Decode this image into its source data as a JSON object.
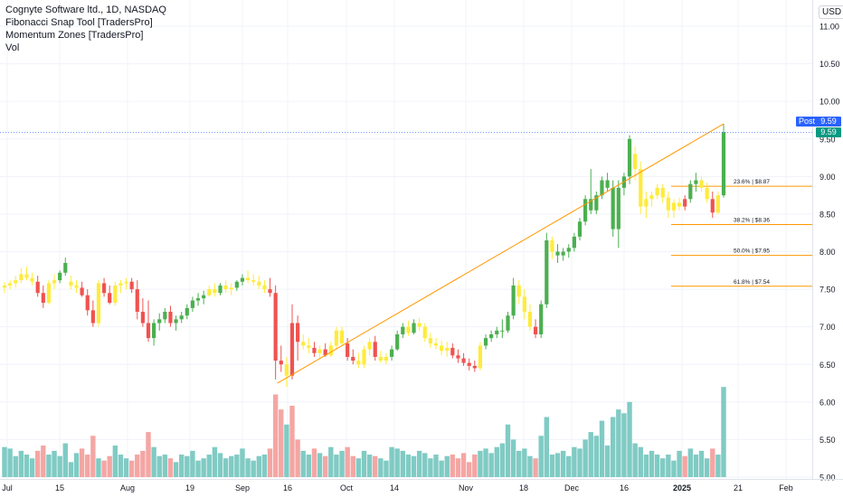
{
  "legend": {
    "title": "Cognyte Software ltd., 1D, NASDAQ",
    "indicators": [
      "Fibonacci Snap Tool [TradersPro]",
      "Momentum Zones [TradersPro]",
      "Vol"
    ]
  },
  "currency": "USD",
  "price_axis_labels": [
    "11.00",
    "10.50",
    "10.00",
    "9.50",
    "9.00",
    "8.50",
    "8.00",
    "7.50",
    "7.00",
    "6.50",
    "6.00",
    "5.50",
    "5.00"
  ],
  "time_axis_labels": [
    "Jul",
    "15",
    "Aug",
    "19",
    "Sep",
    "16",
    "Oct",
    "14",
    "Nov",
    "18",
    "Dec",
    "16",
    "2025",
    "21",
    "Feb"
  ],
  "post_label": "Post",
  "post_price": "9.59",
  "last_price": "9.59",
  "fib_labels": [
    "23.6% | $8.87",
    "38.2% | $8.36",
    "50.0% | $7.95",
    "61.8% | $7.54"
  ],
  "colors": {
    "up": "#4caf50",
    "down": "#ef5350",
    "neutral": "#ffeb3b",
    "vol_up": "#80cbc4",
    "vol_down": "#f4a6a4",
    "fib": "#ff9800",
    "trend": "#ff9800",
    "post": "#2962ff",
    "last": "#089981"
  },
  "chart_data": {
    "type": "candlestick",
    "symbol": "Cognyte Software ltd.",
    "interval": "1D",
    "exchange": "NASDAQ",
    "ylim": [
      5.0,
      11.2
    ],
    "last_price": 9.59,
    "fib_levels": [
      {
        "ratio": "23.6%",
        "price": 8.87
      },
      {
        "ratio": "38.2%",
        "price": 8.36
      },
      {
        "ratio": "50.0%",
        "price": 7.95
      },
      {
        "ratio": "61.8%",
        "price": 7.54
      }
    ],
    "candles": [
      [
        7.52,
        7.6,
        7.45,
        7.55,
        "y",
        5.4
      ],
      [
        7.55,
        7.62,
        7.5,
        7.58,
        "y",
        5.38
      ],
      [
        7.58,
        7.68,
        7.52,
        7.62,
        "y",
        5.28
      ],
      [
        7.62,
        7.78,
        7.58,
        7.7,
        "y",
        5.35
      ],
      [
        7.7,
        7.8,
        7.62,
        7.65,
        "y",
        5.3
      ],
      [
        7.65,
        7.72,
        7.55,
        7.6,
        "y",
        5.25
      ],
      [
        7.6,
        7.68,
        7.4,
        7.45,
        "d",
        5.35
      ],
      [
        7.45,
        7.55,
        7.25,
        7.32,
        "d",
        5.42
      ],
      [
        7.32,
        7.62,
        7.3,
        7.58,
        "y",
        5.3
      ],
      [
        7.58,
        7.7,
        7.5,
        7.62,
        "y",
        5.35
      ],
      [
        7.62,
        7.75,
        7.58,
        7.72,
        "u",
        5.28
      ],
      [
        7.72,
        7.92,
        7.68,
        7.85,
        "u",
        5.45
      ],
      [
        7.6,
        7.68,
        7.5,
        7.55,
        "y",
        5.2
      ],
      [
        7.55,
        7.62,
        7.45,
        7.52,
        "y",
        5.32
      ],
      [
        7.52,
        7.6,
        7.4,
        7.42,
        "d",
        5.38
      ],
      [
        7.42,
        7.5,
        7.15,
        7.22,
        "d",
        5.3
      ],
      [
        7.22,
        7.35,
        7.0,
        7.05,
        "d",
        5.55
      ],
      [
        7.05,
        7.62,
        7.0,
        7.58,
        "y",
        5.25
      ],
      [
        7.58,
        7.65,
        7.4,
        7.45,
        "d",
        5.22
      ],
      [
        7.45,
        7.55,
        7.3,
        7.32,
        "d",
        5.28
      ],
      [
        7.32,
        7.6,
        7.28,
        7.55,
        "y",
        5.42
      ],
      [
        7.55,
        7.62,
        7.45,
        7.58,
        "y",
        5.3
      ],
      [
        7.58,
        7.65,
        7.5,
        7.6,
        "y",
        5.25
      ],
      [
        7.6,
        7.65,
        7.45,
        7.5,
        "d",
        5.22
      ],
      [
        7.5,
        7.62,
        7.1,
        7.2,
        "d",
        5.3
      ],
      [
        7.2,
        7.38,
        7.0,
        7.05,
        "d",
        5.35
      ],
      [
        7.05,
        7.35,
        6.8,
        6.85,
        "d",
        5.6
      ],
      [
        6.85,
        7.1,
        6.75,
        7.05,
        "u",
        5.4
      ],
      [
        7.05,
        7.18,
        6.95,
        7.1,
        "u",
        5.28
      ],
      [
        7.1,
        7.25,
        7.05,
        7.2,
        "u",
        5.3
      ],
      [
        7.2,
        7.28,
        7.0,
        7.05,
        "d",
        5.25
      ],
      [
        7.05,
        7.15,
        6.95,
        7.1,
        "u",
        5.2
      ],
      [
        7.1,
        7.2,
        7.05,
        7.15,
        "u",
        5.3
      ],
      [
        7.15,
        7.3,
        7.1,
        7.25,
        "u",
        5.28
      ],
      [
        7.25,
        7.4,
        7.2,
        7.35,
        "u",
        5.35
      ],
      [
        7.35,
        7.45,
        7.28,
        7.38,
        "u",
        5.22
      ],
      [
        7.38,
        7.48,
        7.3,
        7.42,
        "u",
        5.25
      ],
      [
        7.42,
        7.55,
        7.4,
        7.5,
        "y",
        5.3
      ],
      [
        7.5,
        7.58,
        7.4,
        7.45,
        "y",
        5.4
      ],
      [
        7.45,
        7.58,
        7.42,
        7.55,
        "u",
        5.32
      ],
      [
        7.55,
        7.62,
        7.45,
        7.5,
        "y",
        5.25
      ],
      [
        7.5,
        7.58,
        7.42,
        7.52,
        "y",
        5.28
      ],
      [
        7.52,
        7.62,
        7.48,
        7.6,
        "u",
        5.3
      ],
      [
        7.6,
        7.7,
        7.55,
        7.65,
        "u",
        5.38
      ],
      [
        7.65,
        7.75,
        7.58,
        7.62,
        "y",
        5.25
      ],
      [
        7.62,
        7.7,
        7.55,
        7.6,
        "y",
        5.22
      ],
      [
        7.6,
        7.68,
        7.5,
        7.55,
        "y",
        5.28
      ],
      [
        7.55,
        7.62,
        7.45,
        7.5,
        "y",
        5.3
      ],
      [
        7.5,
        7.65,
        7.4,
        7.45,
        "d",
        5.38
      ],
      [
        7.45,
        7.55,
        6.3,
        6.55,
        "d",
        6.1
      ],
      [
        6.55,
        6.75,
        6.4,
        6.5,
        "d",
        5.9
      ],
      [
        6.5,
        6.6,
        6.2,
        6.35,
        "y",
        5.7
      ],
      [
        6.35,
        7.3,
        6.3,
        7.05,
        "d",
        5.95
      ],
      [
        7.05,
        7.15,
        6.55,
        6.8,
        "d",
        5.5
      ],
      [
        6.8,
        6.9,
        6.7,
        6.75,
        "y",
        5.35
      ],
      [
        6.75,
        6.85,
        6.65,
        6.72,
        "y",
        5.3
      ],
      [
        6.72,
        6.8,
        6.6,
        6.65,
        "d",
        5.38
      ],
      [
        6.65,
        6.75,
        6.58,
        6.7,
        "y",
        5.32
      ],
      [
        6.7,
        6.78,
        6.6,
        6.62,
        "d",
        5.28
      ],
      [
        6.62,
        6.8,
        6.6,
        6.75,
        "y",
        5.4
      ],
      [
        6.75,
        7.0,
        6.7,
        6.95,
        "y",
        5.3
      ],
      [
        6.95,
        7.0,
        6.75,
        6.78,
        "y",
        5.35
      ],
      [
        6.78,
        6.85,
        6.55,
        6.6,
        "d",
        5.4
      ],
      [
        6.6,
        6.7,
        6.5,
        6.55,
        "d",
        5.28
      ],
      [
        6.55,
        6.65,
        6.45,
        6.5,
        "y",
        5.25
      ],
      [
        6.5,
        6.75,
        6.45,
        6.7,
        "y",
        5.35
      ],
      [
        6.7,
        6.85,
        6.62,
        6.8,
        "y",
        5.3
      ],
      [
        6.8,
        6.88,
        6.55,
        6.6,
        "d",
        5.28
      ],
      [
        6.6,
        6.68,
        6.52,
        6.55,
        "y",
        5.25
      ],
      [
        6.55,
        6.65,
        6.5,
        6.6,
        "y",
        5.22
      ],
      [
        6.6,
        6.75,
        6.55,
        6.7,
        "u",
        5.4
      ],
      [
        6.7,
        6.95,
        6.68,
        6.9,
        "u",
        5.38
      ],
      [
        6.9,
        7.05,
        6.85,
        7.0,
        "u",
        5.35
      ],
      [
        7.0,
        7.08,
        6.88,
        6.92,
        "y",
        5.3
      ],
      [
        6.92,
        7.1,
        6.9,
        7.05,
        "u",
        5.28
      ],
      [
        7.05,
        7.12,
        6.95,
        7.0,
        "y",
        5.35
      ],
      [
        7.0,
        7.05,
        6.8,
        6.85,
        "y",
        5.32
      ],
      [
        6.85,
        6.92,
        6.72,
        6.78,
        "y",
        5.25
      ],
      [
        6.78,
        6.85,
        6.7,
        6.75,
        "y",
        5.3
      ],
      [
        6.75,
        6.82,
        6.62,
        6.68,
        "y",
        5.22
      ],
      [
        6.68,
        6.8,
        6.6,
        6.72,
        "y",
        5.28
      ],
      [
        6.72,
        6.78,
        6.58,
        6.62,
        "d",
        5.3
      ],
      [
        6.62,
        6.7,
        6.52,
        6.58,
        "d",
        5.25
      ],
      [
        6.58,
        6.65,
        6.48,
        6.52,
        "d",
        5.32
      ],
      [
        6.52,
        6.58,
        6.42,
        6.48,
        "d",
        5.2
      ],
      [
        6.48,
        6.55,
        6.4,
        6.45,
        "d",
        5.3
      ],
      [
        6.45,
        6.8,
        6.42,
        6.75,
        "y",
        5.35
      ],
      [
        6.75,
        6.9,
        6.7,
        6.85,
        "u",
        5.38
      ],
      [
        6.85,
        6.95,
        6.8,
        6.9,
        "u",
        5.32
      ],
      [
        6.9,
        7.0,
        6.85,
        6.95,
        "u",
        5.4
      ],
      [
        6.95,
        7.1,
        6.85,
        6.95,
        "u",
        5.45
      ],
      [
        6.95,
        7.2,
        6.92,
        7.15,
        "u",
        5.7
      ],
      [
        7.15,
        7.65,
        7.1,
        7.55,
        "u",
        5.5
      ],
      [
        7.55,
        7.62,
        7.3,
        7.4,
        "y",
        5.35
      ],
      [
        7.4,
        7.5,
        7.1,
        7.2,
        "y",
        5.38
      ],
      [
        7.2,
        7.3,
        6.95,
        7.0,
        "y",
        5.28
      ],
      [
        7.0,
        7.1,
        6.85,
        6.9,
        "d",
        5.25
      ],
      [
        6.9,
        7.35,
        6.85,
        7.3,
        "u",
        5.55
      ],
      [
        7.3,
        8.25,
        7.25,
        8.15,
        "u",
        5.8
      ],
      [
        8.15,
        8.2,
        7.9,
        8.0,
        "y",
        5.3
      ],
      [
        8.0,
        8.1,
        7.85,
        7.95,
        "u",
        5.32
      ],
      [
        7.95,
        8.05,
        7.88,
        8.0,
        "u",
        5.35
      ],
      [
        8.0,
        8.1,
        7.92,
        8.05,
        "u",
        5.28
      ],
      [
        8.05,
        8.25,
        8.0,
        8.2,
        "u",
        5.4
      ],
      [
        8.2,
        8.45,
        8.15,
        8.4,
        "u",
        5.38
      ],
      [
        8.4,
        8.75,
        8.35,
        8.7,
        "u",
        5.5
      ],
      [
        8.7,
        9.1,
        8.5,
        8.55,
        "u",
        5.6
      ],
      [
        8.55,
        8.8,
        8.5,
        8.75,
        "u",
        5.55
      ],
      [
        8.75,
        9.0,
        8.7,
        8.95,
        "u",
        5.75
      ],
      [
        8.95,
        9.05,
        8.8,
        8.85,
        "u",
        5.42
      ],
      [
        8.85,
        8.95,
        8.2,
        8.3,
        "u",
        5.8
      ],
      [
        8.3,
        8.95,
        8.05,
        8.85,
        "u",
        5.9
      ],
      [
        8.85,
        9.05,
        8.75,
        9.0,
        "u",
        5.85
      ],
      [
        9.0,
        9.55,
        8.9,
        9.5,
        "u",
        6.0
      ],
      [
        9.3,
        9.4,
        8.95,
        9.1,
        "y",
        5.45
      ],
      [
        9.1,
        9.2,
        8.5,
        8.6,
        "y",
        5.4
      ],
      [
        8.6,
        8.8,
        8.45,
        8.7,
        "y",
        5.3
      ],
      [
        8.7,
        8.8,
        8.6,
        8.75,
        "y",
        5.35
      ],
      [
        8.75,
        8.9,
        8.7,
        8.85,
        "y",
        5.3
      ],
      [
        8.85,
        8.9,
        8.65,
        8.72,
        "y",
        5.25
      ],
      [
        8.72,
        8.8,
        8.45,
        8.55,
        "y",
        5.3
      ],
      [
        8.55,
        8.7,
        8.45,
        8.65,
        "y",
        5.22
      ],
      [
        8.65,
        8.72,
        8.55,
        8.6,
        "y",
        5.35
      ],
      [
        8.6,
        8.75,
        8.55,
        8.7,
        "d",
        5.28
      ],
      [
        8.7,
        8.95,
        8.65,
        8.9,
        "u",
        5.38
      ],
      [
        8.9,
        9.05,
        8.8,
        8.95,
        "u",
        5.3
      ],
      [
        8.95,
        9.0,
        8.8,
        8.85,
        "y",
        5.35
      ],
      [
        8.85,
        8.92,
        8.65,
        8.7,
        "y",
        5.25
      ],
      [
        8.7,
        8.8,
        8.45,
        8.52,
        "d",
        5.38
      ],
      [
        8.52,
        8.8,
        8.5,
        8.75,
        "y",
        5.3
      ],
      [
        8.75,
        9.7,
        8.72,
        9.59,
        "u",
        6.2
      ]
    ]
  }
}
